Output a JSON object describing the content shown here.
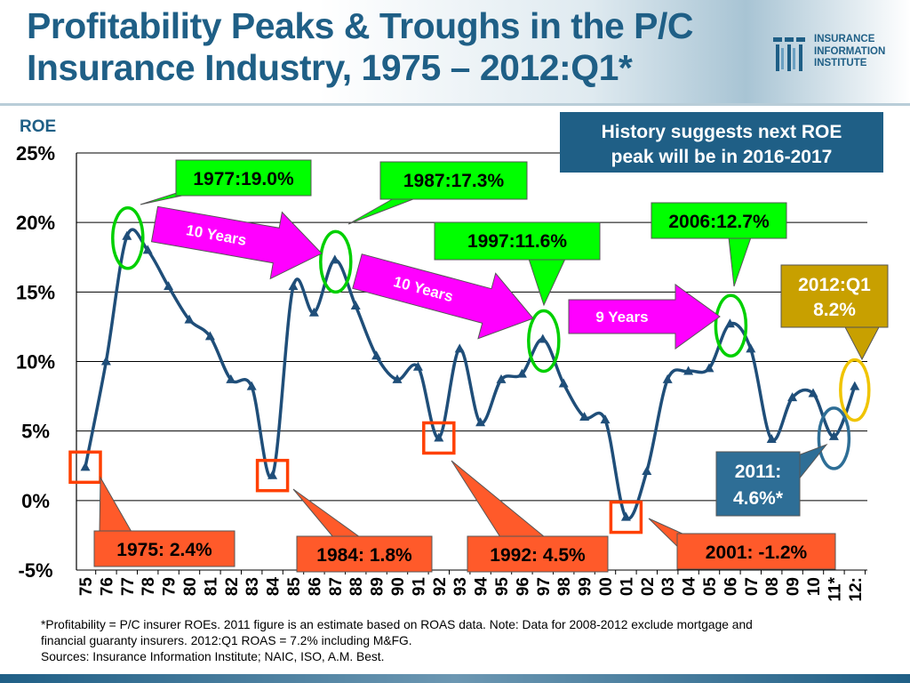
{
  "title": {
    "line1": "Profitability Peaks & Troughs in the P/C",
    "line2": "Insurance Industry, 1975 – 2012:Q1*"
  },
  "logo": {
    "line1": "INSURANCE",
    "line2": "INFORMATION",
    "line3": "INSTITUTE",
    "color": "#1f5f86"
  },
  "history_box": {
    "line1": "History suggests next ROE",
    "line2": "peak will be in 2016-2017",
    "color": "#1f5f86"
  },
  "chart_data": {
    "type": "line",
    "ylabel": "ROE",
    "ylim": [
      -5,
      25
    ],
    "yticks": [
      -5,
      0,
      5,
      10,
      15,
      20,
      25
    ],
    "ytick_labels": [
      "-5%",
      "0%",
      "5%",
      "10%",
      "15%",
      "20%",
      "25%"
    ],
    "x_tick_labels": [
      "75",
      "76",
      "77",
      "78",
      "79",
      "80",
      "81",
      "82",
      "83",
      "84",
      "85",
      "86",
      "87",
      "88",
      "89",
      "90",
      "91",
      "92",
      "93",
      "94",
      "95",
      "96",
      "97",
      "98",
      "99",
      "00",
      "01",
      "02",
      "03",
      "04",
      "05",
      "06",
      "07",
      "08",
      "09",
      "10",
      "11*",
      "12:"
    ],
    "grid": true,
    "line_color": "#1f4e79",
    "series": [
      {
        "values": [
          2.4,
          10.0,
          19.0,
          18.0,
          15.4,
          13.0,
          11.8,
          8.7,
          8.2,
          1.8,
          15.4,
          13.5,
          17.3,
          14.0,
          10.4,
          8.7,
          9.6,
          4.5,
          10.9,
          5.6,
          8.7,
          9.1,
          11.6,
          8.4,
          6.0,
          5.8,
          -1.2,
          2.1,
          8.7,
          9.3,
          9.5,
          12.7,
          10.9,
          4.4,
          7.4,
          7.7,
          4.6,
          8.2
        ]
      }
    ],
    "annotations": {
      "peaks": [
        {
          "label": "1977:19.0%"
        },
        {
          "label": "1987:17.3%"
        },
        {
          "label": "1997:11.6%"
        },
        {
          "label": "2006:12.7%"
        }
      ],
      "troughs": [
        {
          "label": "1975: 2.4%"
        },
        {
          "label": "1984: 1.8%"
        },
        {
          "label": "1992: 4.5%"
        },
        {
          "label": "2001: -1.2%"
        }
      ],
      "arrows": [
        "10 Years",
        "10 Years",
        "9 Years"
      ],
      "latest": {
        "line1": "2012:Q1",
        "line2": "8.2%"
      },
      "estimate": {
        "line1": "2011:",
        "line2": "4.6%*"
      }
    },
    "colors": {
      "peak": "#00d000",
      "peak_box": "#00ff00",
      "trough": "#ff4000",
      "trough_box": "#ff5a2a",
      "arrow": "#ff00ff",
      "latest_box": "#c8a000",
      "latest_ring": "#f0c400",
      "estimate": "#2e6e96"
    }
  },
  "footnote": {
    "line1": "*Profitability =  P/C insurer ROEs. 2011 figure is an estimate based on ROAS data.  Note:  Data for 2008-2012 exclude mortgage and",
    "line2": "financial guaranty insurers.  2012:Q1 ROAS = 7.2% including M&FG.",
    "line3": "Sources:  Insurance Information Institute; NAIC, ISO, A.M. Best."
  }
}
